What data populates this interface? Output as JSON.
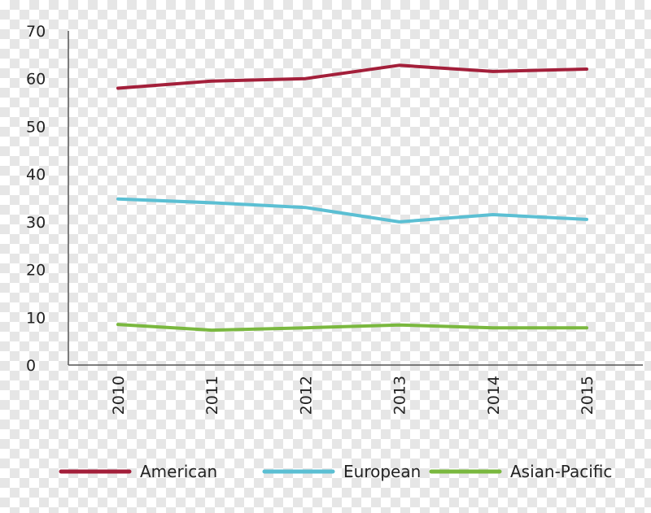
{
  "chart_data": {
    "type": "line",
    "categories": [
      "2010",
      "2011",
      "2012",
      "2013",
      "2014",
      "2015"
    ],
    "yticks": [
      "0",
      "10",
      "20",
      "30",
      "40",
      "50",
      "60",
      "70"
    ],
    "ylim": [
      0,
      70
    ],
    "grid": false,
    "legend_position": "bottom",
    "series": [
      {
        "name": "American",
        "color": "#a31f3a",
        "values": [
          58,
          59.5,
          60,
          62.8,
          61.5,
          62
        ]
      },
      {
        "name": "European",
        "color": "#5bbfd3",
        "values": [
          34.8,
          34,
          33,
          30,
          31.5,
          30.5
        ]
      },
      {
        "name": "Asian-Pacific",
        "color": "#7ab83f",
        "values": [
          8.5,
          7.3,
          7.8,
          8.4,
          7.8,
          7.8
        ]
      }
    ]
  }
}
